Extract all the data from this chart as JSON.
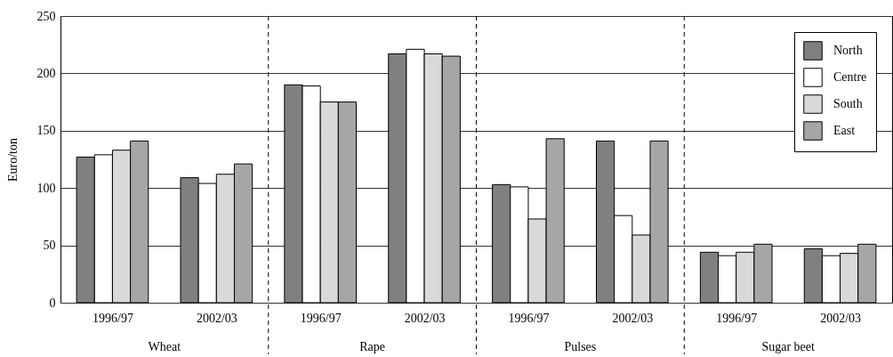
{
  "chart_data": {
    "type": "bar",
    "ylabel": "Euro/ton",
    "categories": [
      "1996/97",
      "2002/03",
      "1996/97",
      "2002/03",
      "1996/97",
      "2002/03",
      "1996/97",
      "2002/03"
    ],
    "series": [
      {
        "name": "North",
        "color": "#808080",
        "values": [
          127,
          109,
          190,
          217,
          103,
          141,
          44,
          47
        ]
      },
      {
        "name": "Centre",
        "color": "#ffffff",
        "values": [
          129,
          104,
          189,
          221,
          101,
          76,
          41,
          41
        ]
      },
      {
        "name": "South",
        "color": "#d9d9d9",
        "values": [
          133,
          112,
          175,
          217,
          73,
          59,
          44,
          43
        ]
      },
      {
        "name": "East",
        "color": "#a6a6a6",
        "values": [
          141,
          121,
          175,
          215,
          143,
          141,
          51,
          51
        ]
      }
    ],
    "annotations": [
      "Wheat",
      "Rape",
      "Pulses",
      "Sugar beet"
    ],
    "ylim": [
      0,
      250
    ],
    "yticks": [
      0,
      50,
      100,
      150,
      200,
      250
    ],
    "grid": "y",
    "legend": "top right"
  }
}
